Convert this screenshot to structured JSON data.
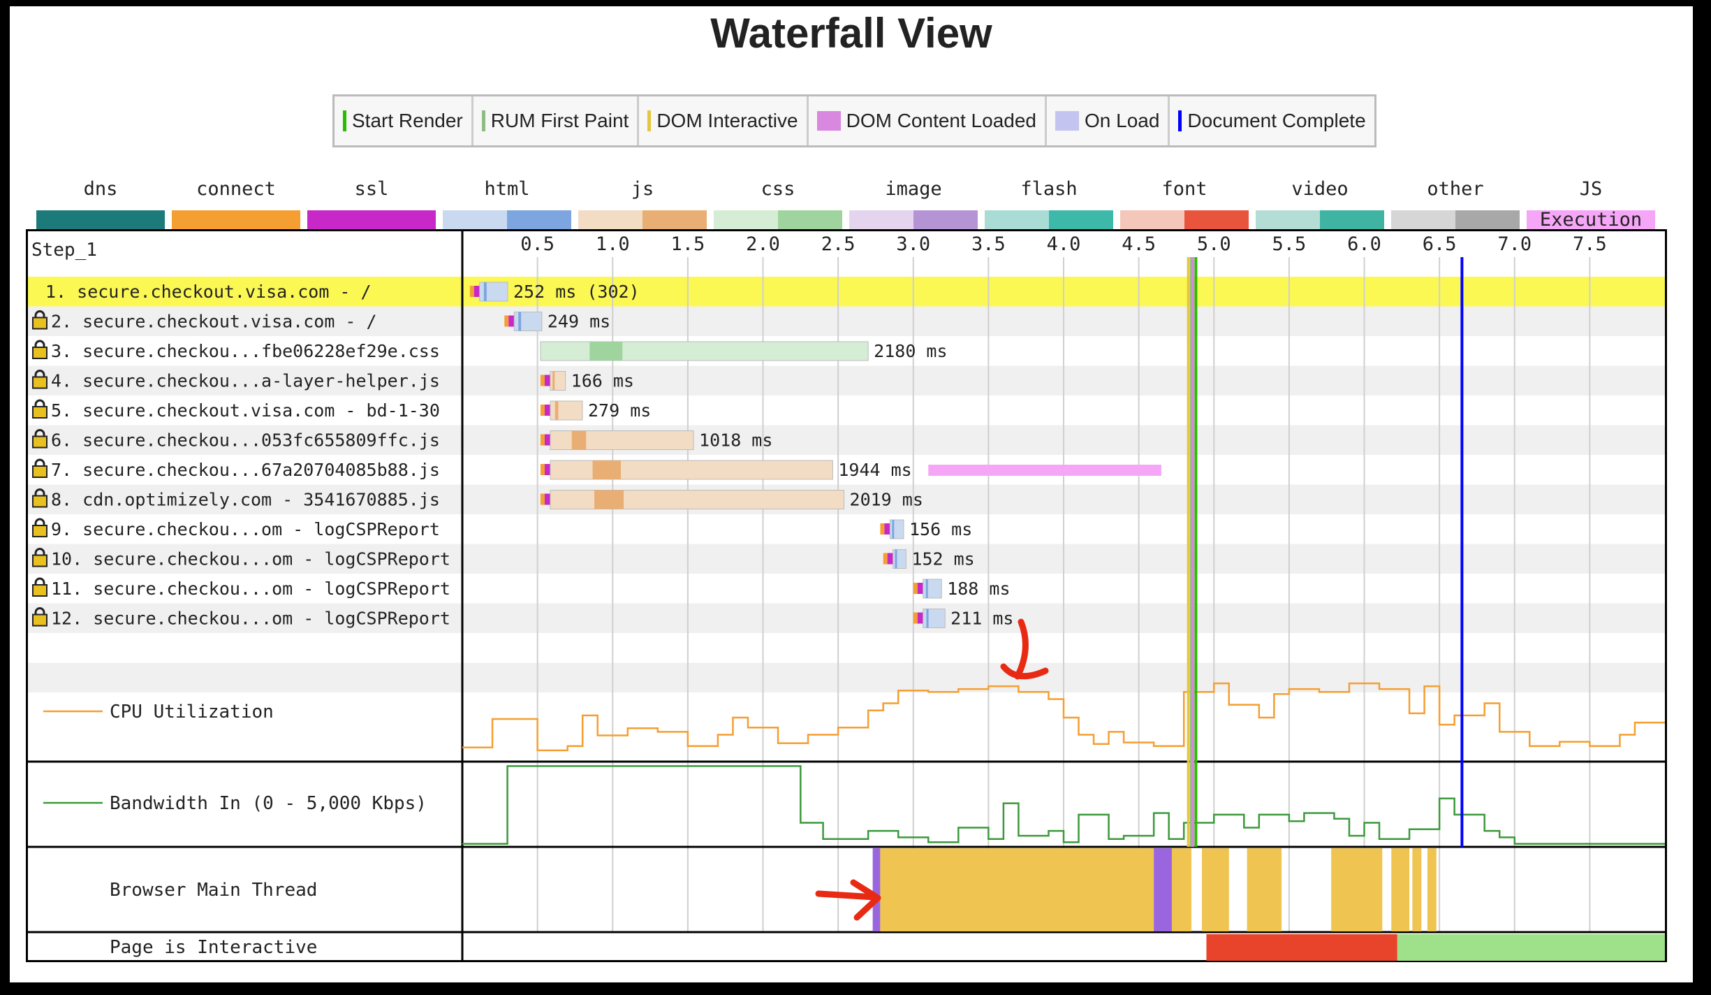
{
  "title": "Waterfall View",
  "legend_events": [
    {
      "label": "Start Render",
      "color": "#28bc00",
      "style": "line"
    },
    {
      "label": "RUM First Paint",
      "color": "#8fbc83",
      "style": "line"
    },
    {
      "label": "DOM Interactive",
      "color": "#e5c63c",
      "style": "line"
    },
    {
      "label": "DOM Content Loaded",
      "color": "#d888df",
      "style": "block"
    },
    {
      "label": "On Load",
      "color": "#c4c4f0",
      "style": "block"
    },
    {
      "label": "Document Complete",
      "color": "#0000ff",
      "style": "line"
    }
  ],
  "legend_types": [
    {
      "label": "dns",
      "colors": [
        "#1d7a7a",
        "#1d7a7a"
      ]
    },
    {
      "label": "connect",
      "colors": [
        "#f59e31",
        "#f59e31"
      ]
    },
    {
      "label": "ssl",
      "colors": [
        "#c828c8",
        "#c828c8"
      ]
    },
    {
      "label": "html",
      "colors": [
        "#c9daf0",
        "#7da6e0"
      ]
    },
    {
      "label": "js",
      "colors": [
        "#f3dcc4",
        "#e8ae73"
      ]
    },
    {
      "label": "css",
      "colors": [
        "#d4edd4",
        "#9fd49f"
      ]
    },
    {
      "label": "image",
      "colors": [
        "#e4d4ee",
        "#b594d6"
      ]
    },
    {
      "label": "flash",
      "colors": [
        "#a9dcd4",
        "#3cb9a9"
      ]
    },
    {
      "label": "font",
      "colors": [
        "#f5c6ba",
        "#e8543c"
      ]
    },
    {
      "label": "video",
      "colors": [
        "#b4ddd5",
        "#3fb4a3"
      ]
    },
    {
      "label": "other",
      "colors": [
        "#d6d6d6",
        "#a8a8a8"
      ]
    },
    {
      "label": "JS Execution",
      "colors": [
        "#f6a6f6",
        "#f6a6f6"
      ]
    }
  ],
  "chart_data": {
    "type": "waterfall",
    "step_label": "Step_1",
    "x_ticks": [
      "0.5",
      "1.0",
      "1.5",
      "2.0",
      "2.5",
      "3.0",
      "3.5",
      "4.0",
      "4.5",
      "5.0",
      "5.5",
      "6.0",
      "6.5",
      "7.0",
      "7.5"
    ],
    "xlim": [
      0,
      8.0
    ],
    "events": {
      "start_render": 4.88,
      "rum_first_paint": 4.85,
      "dom_interactive": 4.83,
      "dom_content_loaded": 4.86,
      "document_complete": 6.65
    },
    "requests": [
      {
        "label": "1. secure.checkout.visa.com - /",
        "start": 0.05,
        "ms": 252,
        "timing": "252 ms (302)",
        "type": "html",
        "secure": false,
        "highlight": true
      },
      {
        "label": "2. secure.checkout.visa.com - /",
        "start": 0.28,
        "ms": 249,
        "timing": "249 ms",
        "type": "html",
        "secure": true
      },
      {
        "label": "3. secure.checkou...fbe06228ef29e.css",
        "start": 0.52,
        "ms": 2180,
        "timing": "2180 ms",
        "type": "css",
        "secure": true
      },
      {
        "label": "4. secure.checkou...a-layer-helper.js",
        "start": 0.52,
        "ms": 166,
        "timing": "166 ms",
        "type": "js",
        "secure": true
      },
      {
        "label": "5. secure.checkout.visa.com - bd-1-30",
        "start": 0.52,
        "ms": 279,
        "timing": "279 ms",
        "type": "js",
        "secure": true
      },
      {
        "label": "6. secure.checkou...053fc655809ffc.js",
        "start": 0.52,
        "ms": 1018,
        "timing": "1018 ms",
        "type": "js",
        "secure": true
      },
      {
        "label": "7. secure.checkou...67a20704085b88.js",
        "start": 0.52,
        "ms": 1944,
        "timing": "1944 ms",
        "type": "js",
        "secure": true
      },
      {
        "label": "8. cdn.optimizely.com - 3541670885.js",
        "start": 0.52,
        "ms": 2019,
        "timing": "2019 ms",
        "type": "js",
        "secure": true
      },
      {
        "label": "9. secure.checkou...om - logCSPReport",
        "start": 2.78,
        "ms": 156,
        "timing": "156 ms",
        "type": "html",
        "secure": true
      },
      {
        "label": "10. secure.checkou...om - logCSPReport",
        "start": 2.8,
        "ms": 152,
        "timing": "152 ms",
        "type": "html",
        "secure": true
      },
      {
        "label": "11. secure.checkou...om - logCSPReport",
        "start": 3.0,
        "ms": 188,
        "timing": "188 ms",
        "type": "html",
        "secure": true
      },
      {
        "label": "12. secure.checkou...om - logCSPReport",
        "start": 3.0,
        "ms": 211,
        "timing": "211 ms",
        "type": "html",
        "secure": true
      }
    ],
    "js_execution": [
      {
        "row": 6,
        "start": 3.1,
        "end": 4.65
      }
    ],
    "cpu": {
      "label": "CPU Utilization",
      "points": [
        [
          0,
          10
        ],
        [
          0.2,
          10
        ],
        [
          0.2,
          50
        ],
        [
          0.5,
          50
        ],
        [
          0.5,
          6
        ],
        [
          0.7,
          6
        ],
        [
          0.7,
          12
        ],
        [
          0.8,
          12
        ],
        [
          0.8,
          55
        ],
        [
          0.9,
          55
        ],
        [
          0.9,
          27
        ],
        [
          1.1,
          27
        ],
        [
          1.1,
          37
        ],
        [
          1.3,
          37
        ],
        [
          1.3,
          32
        ],
        [
          1.5,
          32
        ],
        [
          1.5,
          12
        ],
        [
          1.7,
          12
        ],
        [
          1.7,
          28
        ],
        [
          1.8,
          28
        ],
        [
          1.8,
          52
        ],
        [
          1.9,
          52
        ],
        [
          1.9,
          38
        ],
        [
          2.1,
          38
        ],
        [
          2.1,
          16
        ],
        [
          2.3,
          16
        ],
        [
          2.3,
          28
        ],
        [
          2.5,
          28
        ],
        [
          2.5,
          38
        ],
        [
          2.7,
          38
        ],
        [
          2.7,
          62
        ],
        [
          2.8,
          62
        ],
        [
          2.8,
          72
        ],
        [
          2.9,
          72
        ],
        [
          2.9,
          90
        ],
        [
          3.1,
          90
        ],
        [
          3.1,
          88
        ],
        [
          3.3,
          88
        ],
        [
          3.3,
          92
        ],
        [
          3.5,
          92
        ],
        [
          3.5,
          96
        ],
        [
          3.7,
          96
        ],
        [
          3.7,
          88
        ],
        [
          3.9,
          88
        ],
        [
          3.9,
          78
        ],
        [
          4.0,
          78
        ],
        [
          4.0,
          52
        ],
        [
          4.1,
          52
        ],
        [
          4.1,
          28
        ],
        [
          4.2,
          28
        ],
        [
          4.2,
          15
        ],
        [
          4.3,
          15
        ],
        [
          4.3,
          32
        ],
        [
          4.4,
          32
        ],
        [
          4.4,
          17
        ],
        [
          4.6,
          17
        ],
        [
          4.6,
          12
        ],
        [
          4.8,
          12
        ],
        [
          4.8,
          88
        ],
        [
          5.0,
          88
        ],
        [
          5.0,
          100
        ],
        [
          5.1,
          100
        ],
        [
          5.1,
          70
        ],
        [
          5.3,
          70
        ],
        [
          5.3,
          52
        ],
        [
          5.4,
          52
        ],
        [
          5.4,
          85
        ],
        [
          5.5,
          85
        ],
        [
          5.5,
          92
        ],
        [
          5.7,
          92
        ],
        [
          5.7,
          88
        ],
        [
          5.9,
          88
        ],
        [
          5.9,
          100
        ],
        [
          6.1,
          100
        ],
        [
          6.1,
          92
        ],
        [
          6.3,
          92
        ],
        [
          6.3,
          58
        ],
        [
          6.4,
          58
        ],
        [
          6.4,
          96
        ],
        [
          6.5,
          96
        ],
        [
          6.5,
          42
        ],
        [
          6.6,
          42
        ],
        [
          6.6,
          55
        ],
        [
          6.8,
          55
        ],
        [
          6.8,
          72
        ],
        [
          6.9,
          72
        ],
        [
          6.9,
          32
        ],
        [
          7.1,
          32
        ],
        [
          7.1,
          12
        ],
        [
          7.3,
          12
        ],
        [
          7.3,
          18
        ],
        [
          7.5,
          18
        ],
        [
          7.5,
          12
        ],
        [
          7.7,
          12
        ],
        [
          7.7,
          28
        ],
        [
          7.8,
          28
        ],
        [
          7.8,
          45
        ],
        [
          8.0,
          45
        ]
      ]
    },
    "bandwidth": {
      "label": "Bandwidth In (0 - 5,000 Kbps)",
      "points": [
        [
          0,
          2
        ],
        [
          0.3,
          2
        ],
        [
          0.3,
          98
        ],
        [
          2.25,
          98
        ],
        [
          2.25,
          28
        ],
        [
          2.4,
          28
        ],
        [
          2.4,
          8
        ],
        [
          2.7,
          8
        ],
        [
          2.7,
          18
        ],
        [
          2.9,
          18
        ],
        [
          2.9,
          10
        ],
        [
          3.1,
          10
        ],
        [
          3.1,
          4
        ],
        [
          3.3,
          4
        ],
        [
          3.3,
          22
        ],
        [
          3.5,
          22
        ],
        [
          3.5,
          8
        ],
        [
          3.6,
          8
        ],
        [
          3.6,
          52
        ],
        [
          3.7,
          52
        ],
        [
          3.7,
          12
        ],
        [
          3.9,
          12
        ],
        [
          3.9,
          18
        ],
        [
          4.0,
          18
        ],
        [
          4.0,
          4
        ],
        [
          4.1,
          4
        ],
        [
          4.1,
          38
        ],
        [
          4.3,
          38
        ],
        [
          4.3,
          8
        ],
        [
          4.4,
          8
        ],
        [
          4.4,
          12
        ],
        [
          4.6,
          12
        ],
        [
          4.6,
          40
        ],
        [
          4.7,
          40
        ],
        [
          4.7,
          8
        ],
        [
          4.8,
          8
        ],
        [
          4.8,
          28
        ],
        [
          5.0,
          28
        ],
        [
          5.0,
          38
        ],
        [
          5.2,
          38
        ],
        [
          5.2,
          22
        ],
        [
          5.3,
          22
        ],
        [
          5.3,
          38
        ],
        [
          5.5,
          38
        ],
        [
          5.5,
          30
        ],
        [
          5.6,
          30
        ],
        [
          5.6,
          40
        ],
        [
          5.8,
          40
        ],
        [
          5.8,
          33
        ],
        [
          5.9,
          33
        ],
        [
          5.9,
          12
        ],
        [
          6.0,
          12
        ],
        [
          6.0,
          28
        ],
        [
          6.1,
          28
        ],
        [
          6.1,
          8
        ],
        [
          6.3,
          8
        ],
        [
          6.3,
          20
        ],
        [
          6.5,
          20
        ],
        [
          6.5,
          58
        ],
        [
          6.6,
          58
        ],
        [
          6.6,
          38
        ],
        [
          6.8,
          38
        ],
        [
          6.8,
          18
        ],
        [
          6.9,
          18
        ],
        [
          6.9,
          10
        ],
        [
          7.0,
          10
        ],
        [
          7.0,
          2
        ],
        [
          8.0,
          2
        ]
      ]
    },
    "main_thread": {
      "label": "Browser Main Thread",
      "segments": [
        {
          "start": 2.73,
          "end": 2.78,
          "color": "#9966dd"
        },
        {
          "start": 2.78,
          "end": 4.6,
          "color": "#f0c450"
        },
        {
          "start": 4.6,
          "end": 4.72,
          "color": "#9966dd"
        },
        {
          "start": 4.72,
          "end": 4.85,
          "color": "#f0c450"
        },
        {
          "start": 4.92,
          "end": 5.1,
          "color": "#f0c450"
        },
        {
          "start": 5.22,
          "end": 5.45,
          "color": "#f0c450"
        },
        {
          "start": 5.78,
          "end": 6.12,
          "color": "#f0c450"
        },
        {
          "start": 6.18,
          "end": 6.3,
          "color": "#f0c450"
        },
        {
          "start": 6.32,
          "end": 6.38,
          "color": "#f0c450"
        },
        {
          "start": 6.42,
          "end": 6.48,
          "color": "#f0c450"
        }
      ]
    },
    "interactive": {
      "label": "Page is Interactive",
      "segments": [
        {
          "start": 4.95,
          "end": 6.22,
          "color": "#e8442c"
        },
        {
          "start": 6.22,
          "end": 8.0,
          "color": "#9fe08a"
        }
      ]
    }
  }
}
